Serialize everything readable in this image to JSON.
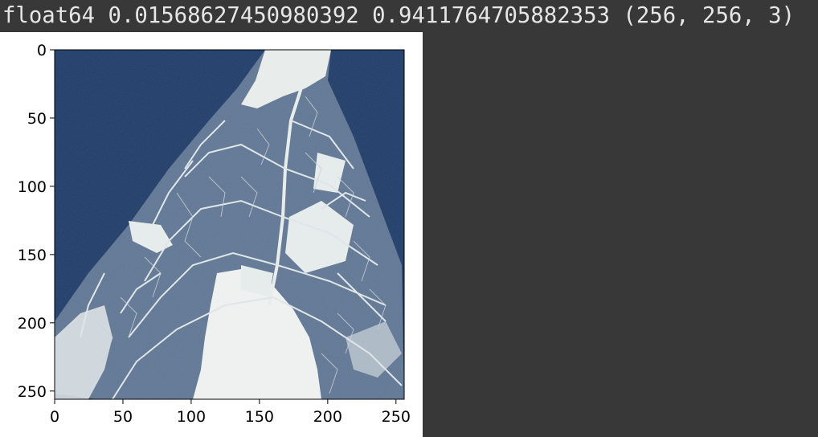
{
  "notebook_output": {
    "printed_line": "float64 0.01568627450980392 0.9411764705882353 (256, 256, 3)"
  },
  "chart_data": {
    "type": "image",
    "image_shape": [
      256,
      256,
      3
    ],
    "dtype": "float64",
    "min_value": 0.01568627450980392,
    "max_value": 0.9411764705882353,
    "x_ticks": [
      "0",
      "50",
      "100",
      "150",
      "200",
      "250"
    ],
    "y_ticks": [
      "0",
      "50",
      "100",
      "150",
      "200",
      "250"
    ],
    "xlim": [
      0,
      256
    ],
    "ylim": [
      256,
      0
    ],
    "grid": false,
    "colors": {
      "background_dark": "#1f3a64",
      "background_mid": "#2d4b74",
      "leaf_light": "#e8ecea",
      "vein_light": "#dfe6e8",
      "axis": "#000000"
    }
  }
}
